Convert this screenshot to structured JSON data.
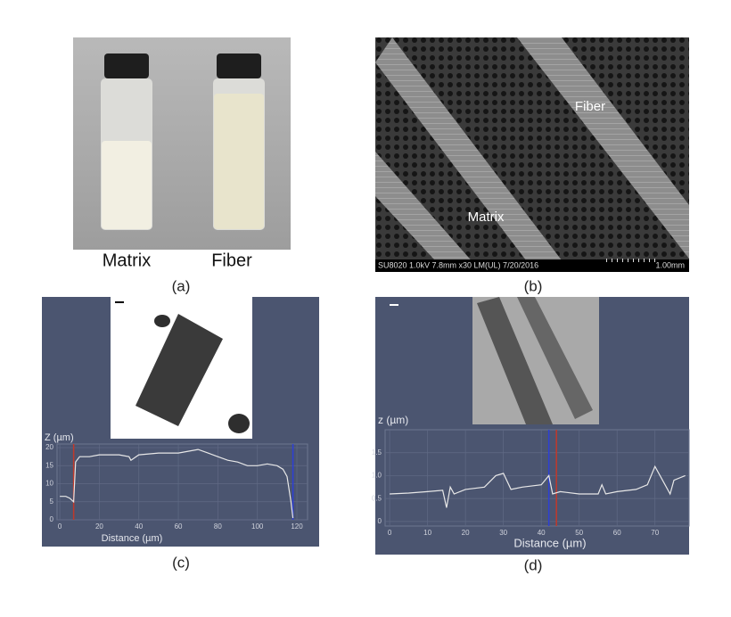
{
  "figure": {
    "a": {
      "labels": [
        "Matrix",
        "Fiber"
      ],
      "caption": "(a)"
    },
    "b": {
      "labels": [
        "Fiber",
        "Matrix"
      ],
      "info": "SU8020 1.0kV 7.8mm x30 LM(UL) 7/20/2016",
      "scale": "1.00mm",
      "caption": "(b)"
    }
  },
  "chart_data": [
    {
      "type": "line",
      "ylabel": "Z (µm)",
      "xlabel": "Distance (µm)",
      "caption": "(c)",
      "x": [
        0,
        3,
        5,
        7,
        8,
        10,
        15,
        20,
        30,
        35,
        36,
        40,
        50,
        60,
        65,
        70,
        75,
        80,
        85,
        90,
        95,
        100,
        105,
        110,
        113,
        115,
        117,
        118
      ],
      "series": [
        {
          "color": "#e8e8e8",
          "values": [
            6.5,
            6.5,
            6,
            5,
            16,
            17.5,
            17.5,
            18,
            18,
            17.5,
            16.5,
            18,
            18.5,
            18.5,
            19,
            19.5,
            18.5,
            17.5,
            16.5,
            16,
            15,
            15,
            15.5,
            15,
            14,
            12,
            5,
            0.5
          ]
        }
      ],
      "cursors": [
        {
          "color": "#c0392b",
          "value": 7
        },
        {
          "color": "#2d3fd6",
          "value": 118
        }
      ],
      "xlim": [
        -1.4,
        125.4
      ],
      "ylim": [
        0,
        21
      ],
      "xticks": [
        0,
        20,
        40,
        60,
        80,
        100,
        120
      ],
      "yticks": [
        0,
        5,
        10,
        15,
        20
      ],
      "grid": true
    },
    {
      "type": "line",
      "ylabel": "z (µm)",
      "xlabel": "Distance (µm)",
      "caption": "(d)",
      "x": [
        0,
        5,
        10,
        14,
        15,
        16,
        17,
        20,
        25,
        28,
        30,
        32,
        35,
        40,
        42,
        43,
        45,
        50,
        55,
        56,
        57,
        60,
        65,
        68,
        70,
        72,
        74,
        75,
        78
      ],
      "series": [
        {
          "color": "#e8e8e8",
          "values": [
            0.6,
            0.62,
            0.65,
            0.68,
            0.3,
            0.75,
            0.6,
            0.7,
            0.75,
            1.0,
            1.05,
            0.7,
            0.75,
            0.8,
            1.0,
            0.6,
            0.65,
            0.6,
            0.6,
            0.8,
            0.6,
            0.65,
            0.7,
            0.8,
            1.2,
            0.9,
            0.6,
            0.9,
            1.0
          ]
        }
      ],
      "cursors": [
        {
          "color": "#2d3fd6",
          "value": 42
        },
        {
          "color": "#c0392b",
          "value": 44
        }
      ],
      "xlim": [
        -1.2,
        79
      ],
      "ylim": [
        -0.1,
        2
      ],
      "xticks": [
        0,
        10,
        20,
        30,
        40,
        50,
        60,
        70
      ],
      "yticks": [
        0,
        0.5,
        {
          "value": 1,
          "label": "1.0"
        },
        1.5
      ],
      "grid": true
    }
  ]
}
